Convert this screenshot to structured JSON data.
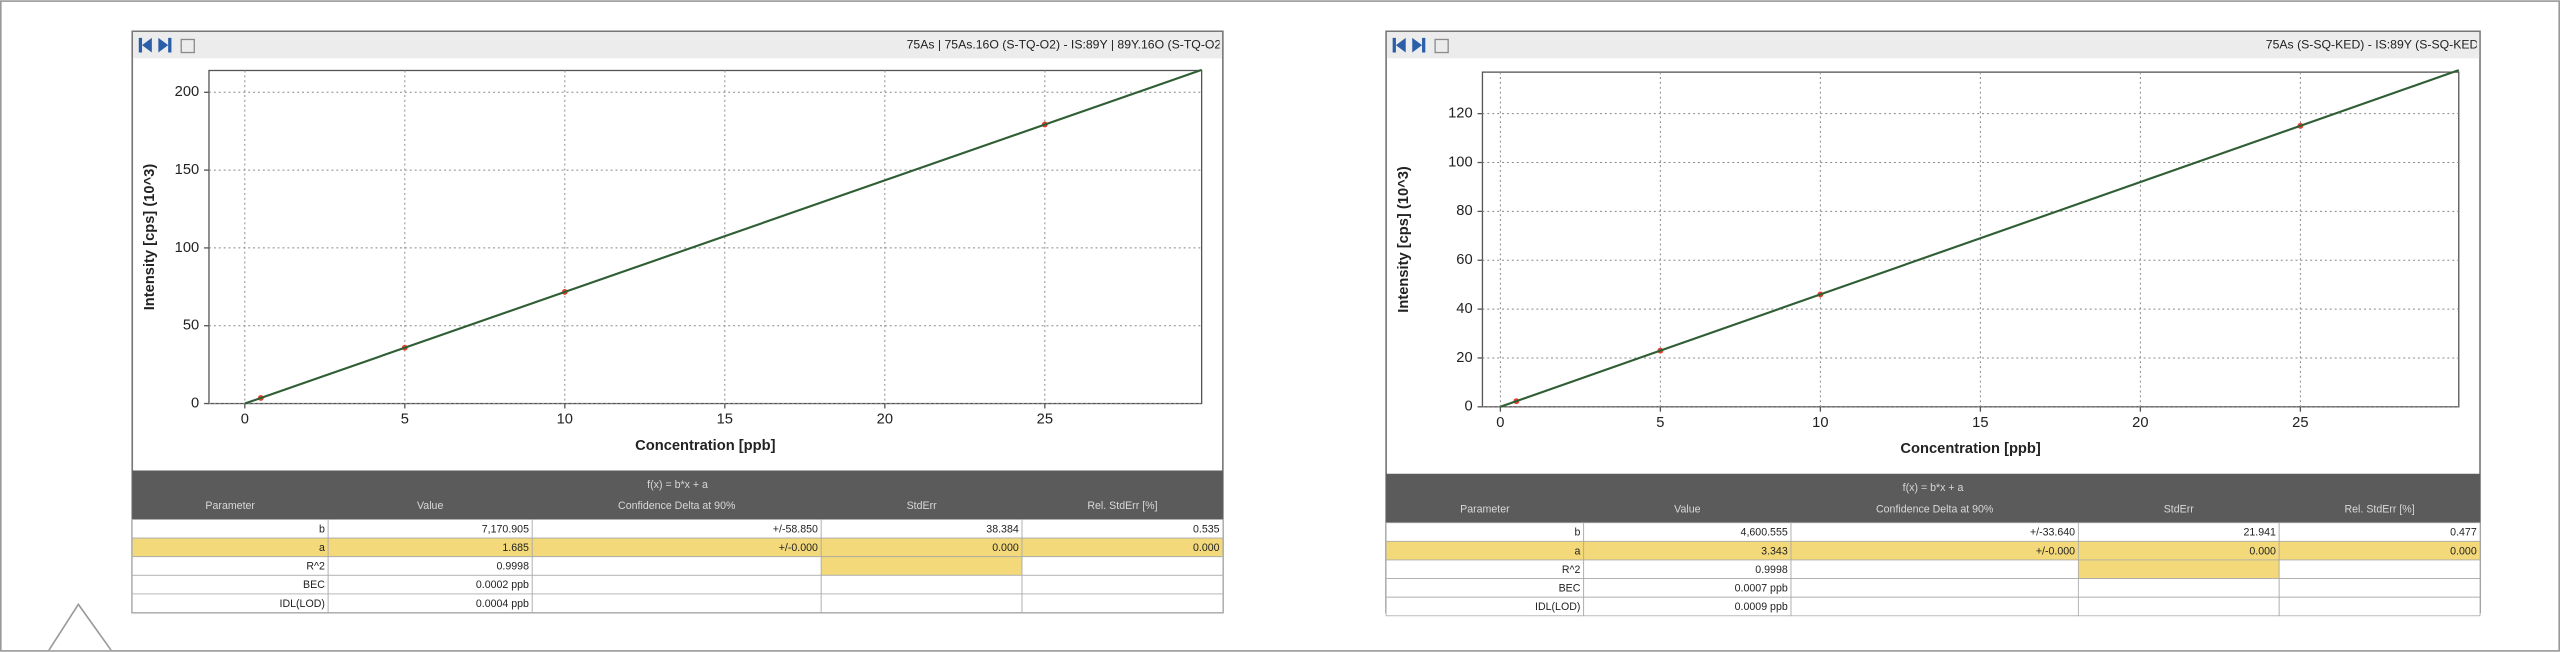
{
  "chart_data": [
    {
      "type": "line",
      "title": "75As | 75As.16O (S-TQ-O2) - IS:89Y | 89Y.16O (S-TQ-O2",
      "x_label": "Concentration [ppb]",
      "y_label": "Intensity [cps] (10^3)",
      "xlim": [
        -1.12,
        29.9
      ],
      "ylim": [
        0,
        214
      ],
      "xticks": [
        0,
        5,
        10,
        15,
        20,
        25
      ],
      "yticks": [
        0,
        50,
        100,
        150,
        200
      ],
      "grid": true,
      "series": [
        {
          "style": "markers",
          "color": "#e8402c",
          "x": [
            0.5,
            5,
            10,
            25
          ],
          "values": [
            3.6,
            35.9,
            71.7,
            179.3
          ]
        },
        {
          "style": "line",
          "color": "#2f5e34",
          "x": [
            0,
            29.9
          ],
          "values": [
            0.0017,
            214.4
          ]
        }
      ]
    },
    {
      "type": "line",
      "title": "75As (S-SQ-KED) - IS:89Y (S-SQ-KED",
      "x_label": "Concentration [ppb]",
      "y_label": "Intensity [cps] (10^3)",
      "xlim": [
        -0.56,
        29.95
      ],
      "ylim": [
        0,
        137
      ],
      "xticks": [
        0,
        5,
        10,
        15,
        20,
        25
      ],
      "yticks": [
        0,
        20,
        40,
        60,
        80,
        100,
        120
      ],
      "grid": true,
      "series": [
        {
          "style": "markers",
          "color": "#e8402c",
          "x": [
            0.5,
            5,
            10,
            25
          ],
          "values": [
            2.3,
            23.0,
            46.0,
            115.0
          ]
        },
        {
          "style": "line",
          "color": "#2f5e34",
          "x": [
            0,
            29.95
          ],
          "values": [
            0.0033,
            137.8
          ]
        }
      ]
    }
  ],
  "tables": [
    {
      "formula": "f(x) = b*x + a",
      "columns": [
        "Parameter",
        "Value",
        "Confidence Delta at 90%",
        "StdErr",
        "Rel. StdErr [%]"
      ],
      "rows": [
        [
          "b",
          "7,170.905",
          "+/-58.850",
          "38.384",
          "0.535"
        ],
        [
          "a",
          "1.685",
          "+/-0.000",
          "0.000",
          "0.000"
        ],
        [
          "R^2",
          "0.9998"
        ],
        [
          "BEC",
          "0.0002 ppb"
        ],
        [
          "IDL(LOD)",
          "0.0004 ppb"
        ]
      ]
    },
    {
      "formula": "f(x) = b*x + a",
      "columns": [
        "Parameter",
        "Value",
        "Confidence Delta at 90%",
        "StdErr",
        "Rel. StdErr [%]"
      ],
      "rows": [
        [
          "b",
          "4,600.555",
          "+/-33.640",
          "21.941",
          "0.477"
        ],
        [
          "a",
          "3.343",
          "+/-0.000",
          "0.000",
          "0.000"
        ],
        [
          "R^2",
          "0.9998"
        ],
        [
          "BEC",
          "0.0007 ppb"
        ],
        [
          "IDL(LOD)",
          "0.0009 ppb"
        ]
      ]
    }
  ]
}
